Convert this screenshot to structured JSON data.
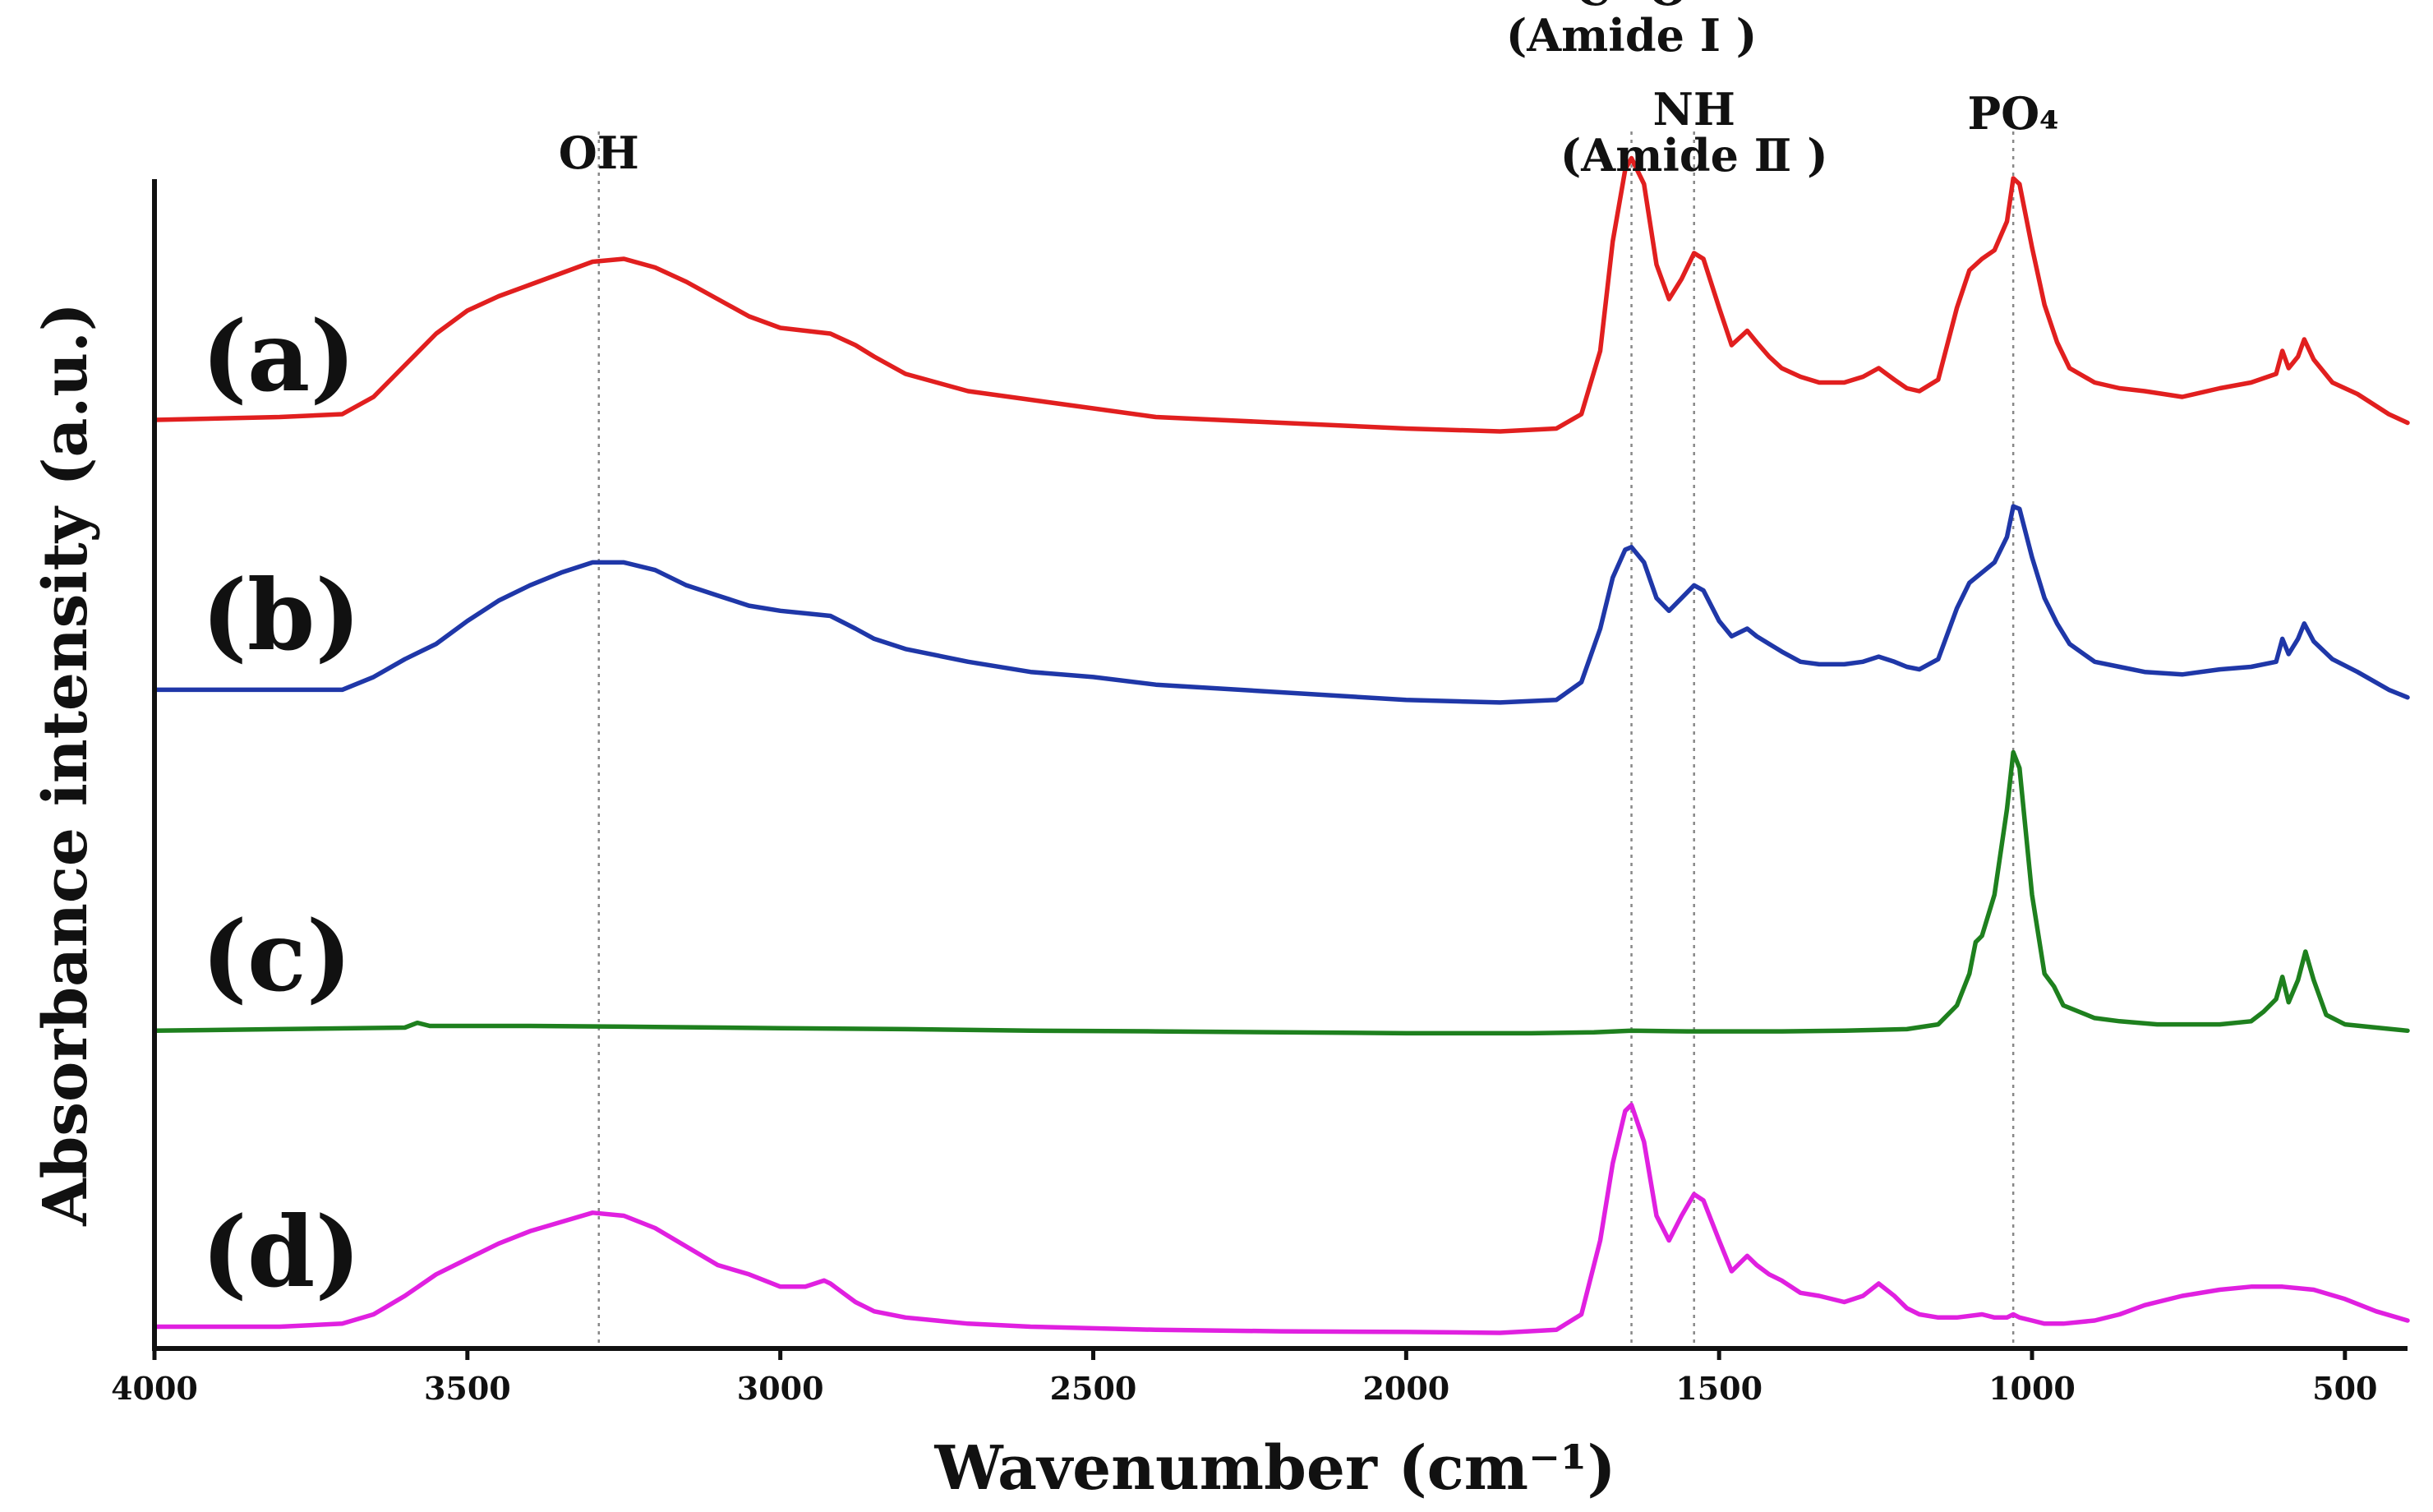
{
  "chart_data": {
    "type": "line",
    "title": "",
    "xlabel": "Wavenumber (cm⁻¹)",
    "ylabel": "Absorbance intensity (a.u.)",
    "xlim": [
      4000,
      400
    ],
    "x_ticks": [
      4000,
      3500,
      3000,
      2500,
      2000,
      1500,
      1000,
      500
    ],
    "grid": false,
    "peak_markers": [
      {
        "id": "oh",
        "label_lines": [
          "OH"
        ],
        "x": 3290
      },
      {
        "id": "co",
        "label_lines": [
          "C=O",
          "(Amide Ⅰ )"
        ],
        "x": 1640
      },
      {
        "id": "nh",
        "label_lines": [
          "NH",
          "(Amide Ⅱ )"
        ],
        "x": 1540
      },
      {
        "id": "po4",
        "label_lines": [
          "PO₄"
        ],
        "x": 1030
      }
    ],
    "series": [
      {
        "name": "(a)",
        "color": "#e11f1f",
        "points": [
          [
            4000,
            0.06
          ],
          [
            3800,
            0.07
          ],
          [
            3700,
            0.08
          ],
          [
            3650,
            0.14
          ],
          [
            3600,
            0.25
          ],
          [
            3550,
            0.36
          ],
          [
            3500,
            0.44
          ],
          [
            3450,
            0.49
          ],
          [
            3400,
            0.53
          ],
          [
            3350,
            0.57
          ],
          [
            3300,
            0.61
          ],
          [
            3250,
            0.62
          ],
          [
            3200,
            0.59
          ],
          [
            3150,
            0.54
          ],
          [
            3100,
            0.48
          ],
          [
            3050,
            0.42
          ],
          [
            3000,
            0.38
          ],
          [
            2960,
            0.37
          ],
          [
            2920,
            0.36
          ],
          [
            2880,
            0.32
          ],
          [
            2850,
            0.28
          ],
          [
            2800,
            0.22
          ],
          [
            2700,
            0.16
          ],
          [
            2600,
            0.13
          ],
          [
            2500,
            0.1
          ],
          [
            2400,
            0.07
          ],
          [
            2200,
            0.05
          ],
          [
            2000,
            0.03
          ],
          [
            1850,
            0.02
          ],
          [
            1760,
            0.03
          ],
          [
            1720,
            0.08
          ],
          [
            1690,
            0.3
          ],
          [
            1670,
            0.68
          ],
          [
            1650,
            0.93
          ],
          [
            1640,
            0.97
          ],
          [
            1620,
            0.88
          ],
          [
            1600,
            0.6
          ],
          [
            1580,
            0.48
          ],
          [
            1560,
            0.55
          ],
          [
            1540,
            0.64
          ],
          [
            1525,
            0.62
          ],
          [
            1500,
            0.45
          ],
          [
            1480,
            0.32
          ],
          [
            1455,
            0.37
          ],
          [
            1440,
            0.33
          ],
          [
            1420,
            0.28
          ],
          [
            1400,
            0.24
          ],
          [
            1370,
            0.21
          ],
          [
            1340,
            0.19
          ],
          [
            1300,
            0.19
          ],
          [
            1270,
            0.21
          ],
          [
            1245,
            0.24
          ],
          [
            1220,
            0.2
          ],
          [
            1200,
            0.17
          ],
          [
            1180,
            0.16
          ],
          [
            1150,
            0.2
          ],
          [
            1120,
            0.45
          ],
          [
            1100,
            0.58
          ],
          [
            1080,
            0.62
          ],
          [
            1060,
            0.65
          ],
          [
            1040,
            0.75
          ],
          [
            1030,
            0.9
          ],
          [
            1020,
            0.88
          ],
          [
            1000,
            0.66
          ],
          [
            980,
            0.46
          ],
          [
            960,
            0.33
          ],
          [
            940,
            0.24
          ],
          [
            900,
            0.19
          ],
          [
            860,
            0.17
          ],
          [
            820,
            0.16
          ],
          [
            760,
            0.14
          ],
          [
            700,
            0.17
          ],
          [
            650,
            0.19
          ],
          [
            610,
            0.22
          ],
          [
            600,
            0.3
          ],
          [
            590,
            0.24
          ],
          [
            575,
            0.28
          ],
          [
            565,
            0.34
          ],
          [
            550,
            0.27
          ],
          [
            520,
            0.19
          ],
          [
            480,
            0.15
          ],
          [
            430,
            0.08
          ],
          [
            400,
            0.05
          ]
        ]
      },
      {
        "name": "(b)",
        "color": "#1f37a8",
        "points": [
          [
            4000,
            0.06
          ],
          [
            3800,
            0.06
          ],
          [
            3700,
            0.06
          ],
          [
            3650,
            0.11
          ],
          [
            3600,
            0.18
          ],
          [
            3550,
            0.24
          ],
          [
            3500,
            0.33
          ],
          [
            3450,
            0.41
          ],
          [
            3400,
            0.47
          ],
          [
            3350,
            0.52
          ],
          [
            3300,
            0.56
          ],
          [
            3250,
            0.56
          ],
          [
            3200,
            0.53
          ],
          [
            3150,
            0.47
          ],
          [
            3100,
            0.43
          ],
          [
            3050,
            0.39
          ],
          [
            3000,
            0.37
          ],
          [
            2960,
            0.36
          ],
          [
            2920,
            0.35
          ],
          [
            2880,
            0.3
          ],
          [
            2850,
            0.26
          ],
          [
            2800,
            0.22
          ],
          [
            2700,
            0.17
          ],
          [
            2600,
            0.13
          ],
          [
            2500,
            0.11
          ],
          [
            2400,
            0.08
          ],
          [
            2200,
            0.05
          ],
          [
            2000,
            0.02
          ],
          [
            1850,
            0.01
          ],
          [
            1760,
            0.02
          ],
          [
            1720,
            0.09
          ],
          [
            1690,
            0.3
          ],
          [
            1670,
            0.5
          ],
          [
            1650,
            0.61
          ],
          [
            1640,
            0.62
          ],
          [
            1620,
            0.56
          ],
          [
            1600,
            0.42
          ],
          [
            1580,
            0.37
          ],
          [
            1560,
            0.42
          ],
          [
            1540,
            0.47
          ],
          [
            1525,
            0.45
          ],
          [
            1500,
            0.33
          ],
          [
            1480,
            0.27
          ],
          [
            1455,
            0.3
          ],
          [
            1440,
            0.27
          ],
          [
            1420,
            0.24
          ],
          [
            1400,
            0.21
          ],
          [
            1370,
            0.17
          ],
          [
            1340,
            0.16
          ],
          [
            1300,
            0.16
          ],
          [
            1270,
            0.17
          ],
          [
            1245,
            0.19
          ],
          [
            1220,
            0.17
          ],
          [
            1200,
            0.15
          ],
          [
            1180,
            0.14
          ],
          [
            1150,
            0.18
          ],
          [
            1120,
            0.38
          ],
          [
            1100,
            0.48
          ],
          [
            1080,
            0.52
          ],
          [
            1060,
            0.56
          ],
          [
            1040,
            0.66
          ],
          [
            1030,
            0.78
          ],
          [
            1020,
            0.77
          ],
          [
            1000,
            0.58
          ],
          [
            980,
            0.42
          ],
          [
            960,
            0.32
          ],
          [
            940,
            0.24
          ],
          [
            900,
            0.17
          ],
          [
            860,
            0.15
          ],
          [
            820,
            0.13
          ],
          [
            760,
            0.12
          ],
          [
            700,
            0.14
          ],
          [
            650,
            0.15
          ],
          [
            610,
            0.17
          ],
          [
            600,
            0.26
          ],
          [
            590,
            0.2
          ],
          [
            575,
            0.26
          ],
          [
            565,
            0.32
          ],
          [
            550,
            0.25
          ],
          [
            520,
            0.18
          ],
          [
            480,
            0.13
          ],
          [
            430,
            0.06
          ],
          [
            400,
            0.03
          ]
        ]
      },
      {
        "name": "(c)",
        "color": "#1e801e",
        "points": [
          [
            4000,
            0.02
          ],
          [
            3800,
            0.025
          ],
          [
            3600,
            0.03
          ],
          [
            3580,
            0.045
          ],
          [
            3560,
            0.035
          ],
          [
            3400,
            0.035
          ],
          [
            3200,
            0.032
          ],
          [
            3000,
            0.028
          ],
          [
            2800,
            0.025
          ],
          [
            2600,
            0.02
          ],
          [
            2400,
            0.018
          ],
          [
            2200,
            0.015
          ],
          [
            2000,
            0.012
          ],
          [
            1800,
            0.012
          ],
          [
            1700,
            0.015
          ],
          [
            1640,
            0.02
          ],
          [
            1550,
            0.018
          ],
          [
            1400,
            0.018
          ],
          [
            1300,
            0.02
          ],
          [
            1200,
            0.025
          ],
          [
            1150,
            0.04
          ],
          [
            1120,
            0.1
          ],
          [
            1100,
            0.2
          ],
          [
            1090,
            0.3
          ],
          [
            1080,
            0.32
          ],
          [
            1060,
            0.45
          ],
          [
            1040,
            0.72
          ],
          [
            1030,
            0.9
          ],
          [
            1020,
            0.85
          ],
          [
            1000,
            0.45
          ],
          [
            980,
            0.2
          ],
          [
            965,
            0.16
          ],
          [
            950,
            0.1
          ],
          [
            900,
            0.06
          ],
          [
            860,
            0.05
          ],
          [
            800,
            0.04
          ],
          [
            700,
            0.04
          ],
          [
            650,
            0.05
          ],
          [
            630,
            0.08
          ],
          [
            610,
            0.12
          ],
          [
            600,
            0.19
          ],
          [
            590,
            0.11
          ],
          [
            575,
            0.18
          ],
          [
            563,
            0.27
          ],
          [
            550,
            0.18
          ],
          [
            530,
            0.07
          ],
          [
            500,
            0.04
          ],
          [
            450,
            0.03
          ],
          [
            400,
            0.02
          ]
        ]
      },
      {
        "name": "(d)",
        "color": "#e020e0",
        "points": [
          [
            4000,
            0.02
          ],
          [
            3800,
            0.02
          ],
          [
            3700,
            0.03
          ],
          [
            3650,
            0.06
          ],
          [
            3600,
            0.12
          ],
          [
            3550,
            0.19
          ],
          [
            3500,
            0.24
          ],
          [
            3450,
            0.29
          ],
          [
            3400,
            0.33
          ],
          [
            3350,
            0.36
          ],
          [
            3300,
            0.39
          ],
          [
            3250,
            0.38
          ],
          [
            3200,
            0.34
          ],
          [
            3150,
            0.28
          ],
          [
            3100,
            0.22
          ],
          [
            3050,
            0.19
          ],
          [
            3000,
            0.15
          ],
          [
            2960,
            0.15
          ],
          [
            2930,
            0.17
          ],
          [
            2920,
            0.16
          ],
          [
            2880,
            0.1
          ],
          [
            2850,
            0.07
          ],
          [
            2800,
            0.05
          ],
          [
            2700,
            0.03
          ],
          [
            2600,
            0.02
          ],
          [
            2400,
            0.01
          ],
          [
            2200,
            0.005
          ],
          [
            2000,
            0.003
          ],
          [
            1850,
            0.0
          ],
          [
            1760,
            0.01
          ],
          [
            1720,
            0.06
          ],
          [
            1690,
            0.3
          ],
          [
            1670,
            0.55
          ],
          [
            1650,
            0.72
          ],
          [
            1640,
            0.74
          ],
          [
            1620,
            0.62
          ],
          [
            1600,
            0.38
          ],
          [
            1580,
            0.3
          ],
          [
            1560,
            0.38
          ],
          [
            1540,
            0.45
          ],
          [
            1525,
            0.43
          ],
          [
            1500,
            0.3
          ],
          [
            1480,
            0.2
          ],
          [
            1455,
            0.25
          ],
          [
            1440,
            0.22
          ],
          [
            1420,
            0.19
          ],
          [
            1400,
            0.17
          ],
          [
            1370,
            0.13
          ],
          [
            1340,
            0.12
          ],
          [
            1300,
            0.1
          ],
          [
            1270,
            0.12
          ],
          [
            1245,
            0.16
          ],
          [
            1220,
            0.12
          ],
          [
            1200,
            0.08
          ],
          [
            1180,
            0.06
          ],
          [
            1150,
            0.05
          ],
          [
            1120,
            0.05
          ],
          [
            1080,
            0.06
          ],
          [
            1060,
            0.05
          ],
          [
            1040,
            0.05
          ],
          [
            1030,
            0.06
          ],
          [
            1020,
            0.05
          ],
          [
            1000,
            0.04
          ],
          [
            980,
            0.03
          ],
          [
            950,
            0.03
          ],
          [
            900,
            0.04
          ],
          [
            860,
            0.06
          ],
          [
            820,
            0.09
          ],
          [
            760,
            0.12
          ],
          [
            700,
            0.14
          ],
          [
            650,
            0.15
          ],
          [
            600,
            0.15
          ],
          [
            550,
            0.14
          ],
          [
            500,
            0.11
          ],
          [
            450,
            0.07
          ],
          [
            400,
            0.04
          ]
        ]
      }
    ]
  }
}
